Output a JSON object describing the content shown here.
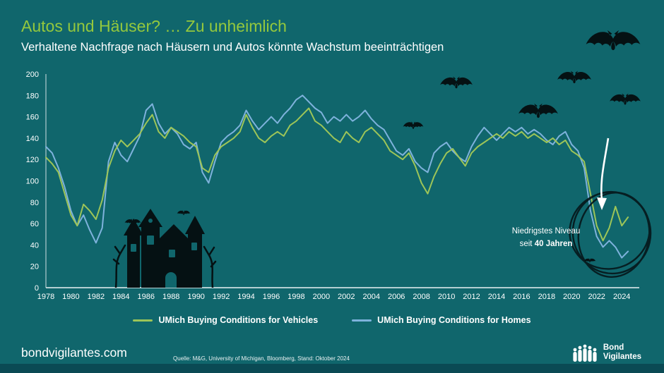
{
  "slide": {
    "title": "Autos und Häuser? … Zu unheimlich",
    "subtitle": "Verhaltene Nachfrage nach Häusern und Autos könnte Wachstum beeinträchtigen"
  },
  "annotation": {
    "regular": "Niedrigstes Niveau seit",
    "bold": "40 Jahren"
  },
  "footer": {
    "website": "bondvigilantes.com",
    "source": "Quelle: M&G, University of Michigan, Bloomberg, Stand: Oktober 2024",
    "logo_line1": "Bond",
    "logo_line2": "Vigilantes"
  },
  "icons": {
    "bat": "bat-icon",
    "haunted_house": "haunted-house-icon",
    "people": "people-icon"
  },
  "colors": {
    "background": "#10666C",
    "title_green": "#94C83D",
    "vehicles_line": "#9DC558",
    "homes_line": "#7EB2DC",
    "text": "#FFFFFF"
  },
  "chart_data": {
    "type": "line",
    "title": "Autos und Häuser? … Zu unheimlich",
    "subtitle": "Verhaltene Nachfrage nach Häusern und Autos könnte Wachstum beeinträchtigen",
    "annotation": "Niedrigstes Niveau seit 40 Jahren",
    "grid": false,
    "legend_position": "bottom",
    "ylim": [
      0,
      200
    ],
    "y_ticks": [
      0,
      20,
      40,
      60,
      80,
      100,
      120,
      140,
      160,
      180,
      200
    ],
    "xlim": [
      1978,
      2025.4
    ],
    "x_ticks": [
      1978,
      1980,
      1982,
      1984,
      1986,
      1988,
      1990,
      1992,
      1994,
      1996,
      1998,
      2000,
      2002,
      2004,
      2006,
      2008,
      2010,
      2012,
      2014,
      2016,
      2018,
      2020,
      2022,
      2024
    ],
    "x_start": 1978,
    "x_step": 0.5,
    "x_end": 2024.5,
    "series": [
      {
        "id": "vehicles",
        "name": "UMich Buying Conditions for Vehicles",
        "color": "#9DC558",
        "values": [
          122,
          116,
          108,
          88,
          68,
          58,
          78,
          72,
          64,
          82,
          112,
          128,
          138,
          132,
          138,
          144,
          154,
          162,
          146,
          140,
          150,
          146,
          142,
          136,
          132,
          112,
          108,
          124,
          132,
          136,
          140,
          146,
          162,
          150,
          140,
          136,
          142,
          146,
          142,
          152,
          156,
          162,
          168,
          156,
          152,
          146,
          140,
          136,
          146,
          140,
          136,
          146,
          150,
          144,
          138,
          128,
          124,
          120,
          126,
          114,
          98,
          88,
          104,
          116,
          126,
          130,
          122,
          114,
          126,
          132,
          136,
          140,
          144,
          140,
          146,
          142,
          146,
          140,
          144,
          140,
          136,
          140,
          134,
          138,
          128,
          124,
          118,
          88,
          58,
          44,
          56,
          76,
          58,
          66
        ]
      },
      {
        "id": "homes",
        "name": "UMich Buying Conditions for Homes",
        "color": "#7EB2DC",
        "values": [
          132,
          126,
          112,
          94,
          72,
          58,
          68,
          54,
          42,
          56,
          118,
          136,
          124,
          118,
          130,
          142,
          166,
          172,
          154,
          144,
          150,
          144,
          134,
          130,
          136,
          108,
          98,
          118,
          136,
          142,
          146,
          152,
          166,
          156,
          148,
          154,
          160,
          154,
          162,
          168,
          176,
          180,
          174,
          168,
          164,
          154,
          160,
          156,
          162,
          156,
          160,
          166,
          158,
          152,
          148,
          138,
          128,
          124,
          130,
          118,
          112,
          108,
          126,
          132,
          136,
          128,
          122,
          118,
          132,
          142,
          150,
          144,
          138,
          144,
          150,
          146,
          150,
          144,
          148,
          144,
          138,
          134,
          142,
          146,
          134,
          128,
          112,
          72,
          48,
          38,
          44,
          38,
          28,
          34
        ]
      }
    ]
  }
}
